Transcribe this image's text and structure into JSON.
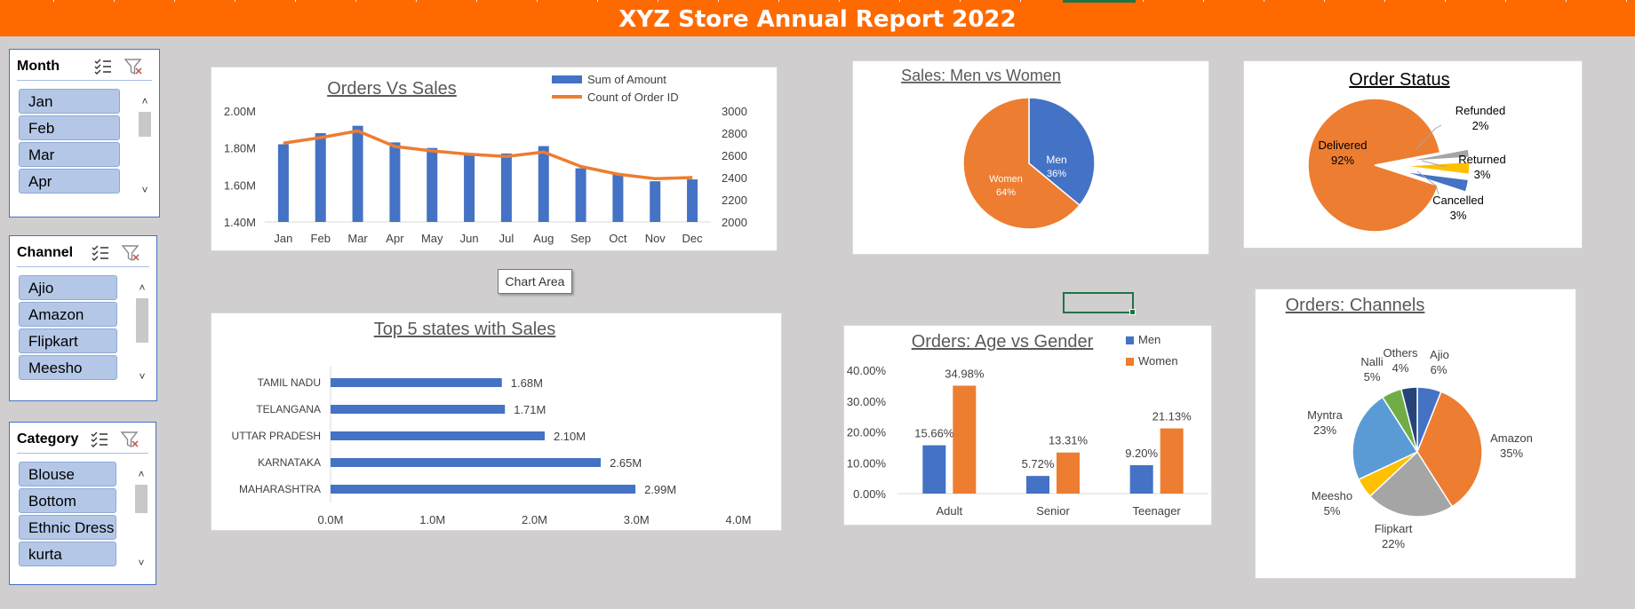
{
  "title": "XYZ Store Annual Report 2022",
  "colors": {
    "banner": "#ff6a00",
    "blue": "#4472c4",
    "orange": "#ed7d31",
    "gray": "#a5a5a5",
    "yellow": "#ffc000",
    "lightblue": "#5b9bd5",
    "green": "#70ad47",
    "navy": "#264478",
    "sheet_bg": "#d0cece"
  },
  "slicers": [
    {
      "title": "Month",
      "items": [
        "Jan",
        "Feb",
        "Mar",
        "Apr"
      ],
      "icons": [
        "multi-select-icon",
        "clear-filter-icon"
      ]
    },
    {
      "title": "Channel",
      "items": [
        "Ajio",
        "Amazon",
        "Flipkart",
        "Meesho"
      ],
      "icons": [
        "multi-select-icon",
        "clear-filter-icon"
      ]
    },
    {
      "title": "Category",
      "items": [
        "Blouse",
        "Bottom",
        "Ethnic Dress",
        "kurta"
      ],
      "icons": [
        "multi-select-icon",
        "clear-filter-icon"
      ]
    }
  ],
  "tooltip": "Chart Area",
  "chart_data": [
    {
      "type": "bar",
      "title": "Orders Vs Sales",
      "categories": [
        "Jan",
        "Feb",
        "Mar",
        "Apr",
        "May",
        "Jun",
        "Jul",
        "Aug",
        "Sep",
        "Oct",
        "Nov",
        "Dec"
      ],
      "series": [
        {
          "name": "Sum of Amount",
          "type": "bar",
          "axis": "primary",
          "values": [
            1.82,
            1.88,
            1.92,
            1.83,
            1.8,
            1.76,
            1.77,
            1.81,
            1.69,
            1.66,
            1.62,
            1.63
          ]
        },
        {
          "name": "Count of Order ID",
          "type": "line",
          "axis": "secondary",
          "values": [
            2710,
            2760,
            2820,
            2680,
            2640,
            2610,
            2590,
            2630,
            2500,
            2430,
            2390,
            2400
          ]
        }
      ],
      "ylim": [
        1.4,
        2.0
      ],
      "y_ticks": [
        "1.40M",
        "1.60M",
        "1.80M",
        "2.00M"
      ],
      "y2lim": [
        2000,
        3000
      ],
      "y2_ticks": [
        "2000",
        "2200",
        "2400",
        "2600",
        "2800",
        "3000"
      ],
      "legend": "top-right"
    },
    {
      "type": "pie",
      "title": "Sales: Men vs Women",
      "categories": [
        "Men",
        "Women"
      ],
      "values": [
        36,
        64
      ],
      "labels": [
        "36%",
        "64%"
      ]
    },
    {
      "type": "pie",
      "title": "Order Status",
      "categories": [
        "Delivered",
        "Refunded",
        "Returned",
        "Cancelled"
      ],
      "values": [
        92,
        2,
        3,
        3
      ],
      "labels": [
        "92%",
        "2%",
        "3%",
        "3%"
      ]
    },
    {
      "type": "bar",
      "orientation": "horizontal",
      "title": "Top 5 states with Sales",
      "categories": [
        "TAMIL NADU",
        "TELANGANA",
        "UTTAR PRADESH",
        "KARNATAKA",
        "MAHARASHTRA"
      ],
      "values": [
        1.68,
        1.71,
        2.1,
        2.65,
        2.99
      ],
      "labels": [
        "1.68M",
        "1.71M",
        "2.10M",
        "2.65M",
        "2.99M"
      ],
      "xlim": [
        0,
        4
      ],
      "x_ticks": [
        "0.0M",
        "1.0M",
        "2.0M",
        "3.0M",
        "4.0M"
      ]
    },
    {
      "type": "bar",
      "title": "Orders: Age vs Gender",
      "categories": [
        "Adult",
        "Senior",
        "Teenager"
      ],
      "series": [
        {
          "name": "Men",
          "values": [
            15.66,
            5.72,
            9.2
          ],
          "labels": [
            "15.66%",
            "5.72%",
            "9.20%"
          ]
        },
        {
          "name": "Women",
          "values": [
            34.98,
            13.31,
            21.13
          ],
          "labels": [
            "34.98%",
            "13.31%",
            "21.13%"
          ]
        }
      ],
      "ylim": [
        0,
        40
      ],
      "y_ticks": [
        "0.00%",
        "10.00%",
        "20.00%",
        "30.00%",
        "40.00%"
      ],
      "legend": "top-right"
    },
    {
      "type": "pie",
      "title": "Orders: Channels",
      "categories": [
        "Ajio",
        "Amazon",
        "Flipkart",
        "Meesho",
        "Myntra",
        "Nalli",
        "Others"
      ],
      "values": [
        6,
        35,
        22,
        5,
        23,
        5,
        4
      ],
      "labels": [
        "6%",
        "35%",
        "22%",
        "5%",
        "23%",
        "5%",
        "4%"
      ]
    }
  ]
}
